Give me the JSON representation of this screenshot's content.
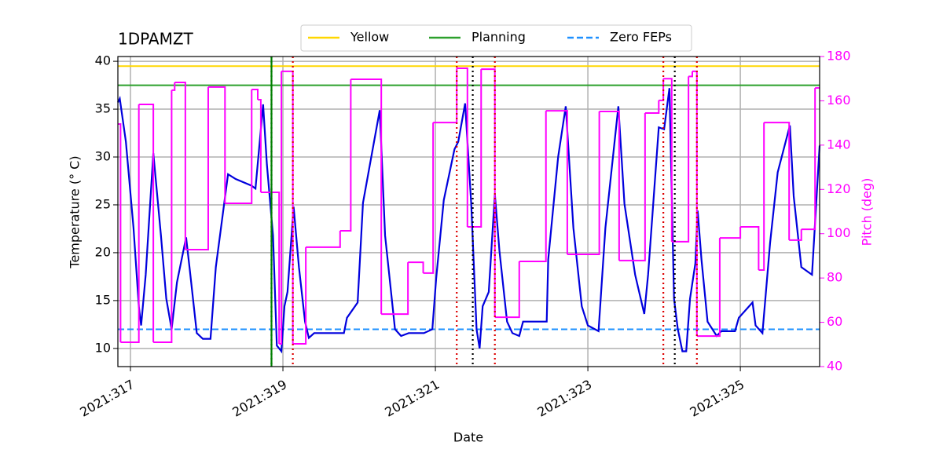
{
  "chart_data": {
    "type": "line",
    "title": "1DPAMZT",
    "xlabel": "Date",
    "ylabel": "Temperature (° C)",
    "y2label": "Pitch (deg)",
    "xlim": [
      316.835,
      326.04
    ],
    "xticks": [
      {
        "value": 317,
        "label": "2021:317"
      },
      {
        "value": 319,
        "label": "2021:319"
      },
      {
        "value": 321,
        "label": "2021:321"
      },
      {
        "value": 323,
        "label": "2021:323"
      },
      {
        "value": 325,
        "label": "2021:325"
      }
    ],
    "ylim": [
      8.1,
      40.5
    ],
    "yticks": [
      10,
      15,
      20,
      25,
      30,
      35,
      40
    ],
    "y2lim": [
      40,
      180
    ],
    "y2ticks": [
      40,
      60,
      80,
      100,
      120,
      140,
      160,
      180
    ],
    "y2color": "#ff00ff",
    "grid": true,
    "legend": "top",
    "reference_lines": [
      {
        "name": "Yellow",
        "color": "#ffd700",
        "style": "solid",
        "value": 39.5
      },
      {
        "name": "Planning",
        "color": "#2ca02c",
        "style": "solid",
        "value": 37.5
      },
      {
        "name": "Zero FEPs",
        "color": "#1e90ff",
        "style": "dashed",
        "value": 12
      }
    ],
    "vlines": [
      {
        "color": "#000000",
        "style": "dotted",
        "x": [
          318.85,
          321.49,
          324.14
        ]
      },
      {
        "color": "#008000",
        "style": "solid",
        "x": [
          318.85
        ]
      },
      {
        "color": "#dd0000",
        "style": "dotted",
        "x": [
          319.13,
          321.28,
          321.78,
          323.99,
          324.43
        ]
      }
    ],
    "series": [
      {
        "color": "#0000dd",
        "step": false,
        "x": [
          316.835,
          316.86,
          316.94,
          317.04,
          317.11,
          317.14,
          317.2,
          317.3,
          317.4,
          317.47,
          317.54,
          317.61,
          317.73,
          317.78,
          317.87,
          317.95,
          318.05,
          318.12,
          318.28,
          318.38,
          318.59,
          318.64,
          318.74,
          318.79,
          318.87,
          318.92,
          318.98,
          319.02,
          319.06,
          319.14,
          319.21,
          319.29,
          319.34,
          319.41,
          319.8,
          319.84,
          319.98,
          320.05,
          320.27,
          320.34,
          320.47,
          320.55,
          320.65,
          320.85,
          320.96,
          321.01,
          321.11,
          321.25,
          321.3,
          321.39,
          321.47,
          321.54,
          321.58,
          321.62,
          321.7,
          321.78,
          321.84,
          321.94,
          322.01,
          322.1,
          322.15,
          322.25,
          322.46,
          322.48,
          322.61,
          322.71,
          322.81,
          322.92,
          323.0,
          323.14,
          323.23,
          323.4,
          323.48,
          323.62,
          323.74,
          323.79,
          323.93,
          324.0,
          324.07,
          324.13,
          324.18,
          324.24,
          324.29,
          324.34,
          324.41,
          324.44,
          324.49,
          324.57,
          324.69,
          324.75,
          324.93,
          324.98,
          325.16,
          325.2,
          325.29,
          325.39,
          325.49,
          325.65,
          325.7,
          325.8,
          325.94,
          326.04
        ],
        "values": [
          35.7,
          36.1,
          31.6,
          22.6,
          14.4,
          12.4,
          17.7,
          30.4,
          21.8,
          15.2,
          12.0,
          16.9,
          21.6,
          18.1,
          11.6,
          11.0,
          11.0,
          18.5,
          28.2,
          27.7,
          27.0,
          26.7,
          35.5,
          29.2,
          21.8,
          10.3,
          9.7,
          14.4,
          15.9,
          24.8,
          18.5,
          12.8,
          11.1,
          11.6,
          11.6,
          13.2,
          14.8,
          25.2,
          34.9,
          21.8,
          12.0,
          11.3,
          11.6,
          11.6,
          12.0,
          17.3,
          25.5,
          30.8,
          31.6,
          35.6,
          25.1,
          12.0,
          10.0,
          14.4,
          15.9,
          26.1,
          20.2,
          12.8,
          11.6,
          11.3,
          12.8,
          12.8,
          12.8,
          19.3,
          30.0,
          35.3,
          22.6,
          14.4,
          12.4,
          11.8,
          22.6,
          35.3,
          25.1,
          17.7,
          13.6,
          17.7,
          33.1,
          32.9,
          37.2,
          15.2,
          12.0,
          9.7,
          9.7,
          15.2,
          18.9,
          24.4,
          19.3,
          12.8,
          11.3,
          11.8,
          11.8,
          13.2,
          14.8,
          12.4,
          11.6,
          21.0,
          28.4,
          33.3,
          25.9,
          18.5,
          17.7,
          31.2
        ]
      },
      {
        "color": "#ff00ff",
        "step": true,
        "axis": "y2",
        "x": [
          316.835,
          316.87,
          317.11,
          317.3,
          317.54,
          317.58,
          317.72,
          318.02,
          318.24,
          318.59,
          318.67,
          318.71,
          318.95,
          318.98,
          319.13,
          319.3,
          319.75,
          319.89,
          320.29,
          320.64,
          320.84,
          320.97,
          321.28,
          321.42,
          321.6,
          321.78,
          322.1,
          322.45,
          322.73,
          323.15,
          323.41,
          323.75,
          323.93,
          323.99,
          324.1,
          324.32,
          324.37,
          324.43,
          324.73,
          325.0,
          325.24,
          325.31,
          325.64,
          325.8,
          325.98,
          326.04
        ],
        "values": [
          149.5,
          51,
          158.4,
          51,
          164.8,
          168.3,
          92.8,
          166.2,
          113.7,
          165.1,
          160.5,
          118.7,
          50.3,
          173.3,
          50.3,
          93.9,
          101.3,
          169.7,
          63.7,
          87.1,
          82.2,
          150.2,
          174.7,
          103.1,
          174.3,
          62.3,
          87.5,
          155.5,
          90.7,
          155.2,
          87.9,
          154.5,
          160.2,
          170,
          96.4,
          171,
          173.3,
          53.8,
          98.1,
          103.1,
          83.6,
          150.2,
          97.1,
          102,
          165.8,
          165.8
        ]
      }
    ]
  }
}
